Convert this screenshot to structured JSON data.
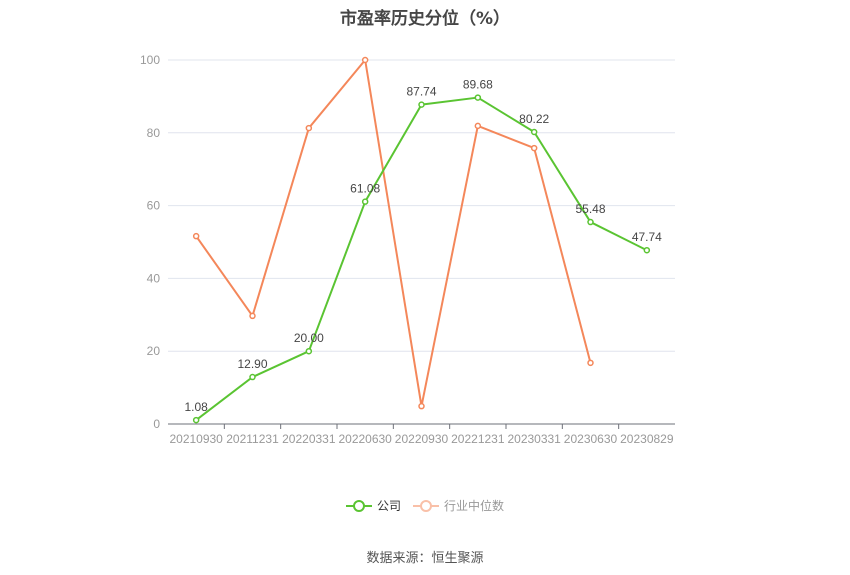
{
  "title": "市盈率历史分位（%）",
  "source": "数据来源：恒生聚源",
  "legend": {
    "company_label": "公司",
    "industry_label": "行业中位数"
  },
  "colors": {
    "company": "#5ac432",
    "industry": "#f4875a",
    "grid": "#e0e4ee",
    "axis": "#6e7079",
    "tick_label": "#999999",
    "data_label": "#464646"
  },
  "chart_data": {
    "type": "line",
    "title": "市盈率历史分位（%）",
    "xlabel": "",
    "ylabel": "",
    "ylim": [
      0,
      100
    ],
    "yticks": [
      0,
      20,
      40,
      60,
      80,
      100
    ],
    "grid": true,
    "legend_position": "bottom",
    "categories": [
      "20210930",
      "20211231",
      "20220331",
      "20220630",
      "20220930",
      "20221231",
      "20230331",
      "20230630",
      "20230829"
    ],
    "series": [
      {
        "name": "公司",
        "values": [
          1.08,
          12.9,
          20.0,
          61.08,
          87.74,
          89.68,
          80.22,
          55.48,
          47.74
        ],
        "labels": [
          "1.08",
          "12.90",
          "20.00",
          "61.08",
          "87.74",
          "89.68",
          "80.22",
          "55.48",
          "47.74"
        ]
      },
      {
        "name": "行业中位数",
        "values": [
          51.6,
          29.7,
          81.3,
          100.0,
          4.9,
          81.9,
          75.8,
          16.8,
          null
        ]
      }
    ],
    "annotation": "数据来源：恒生聚源"
  }
}
